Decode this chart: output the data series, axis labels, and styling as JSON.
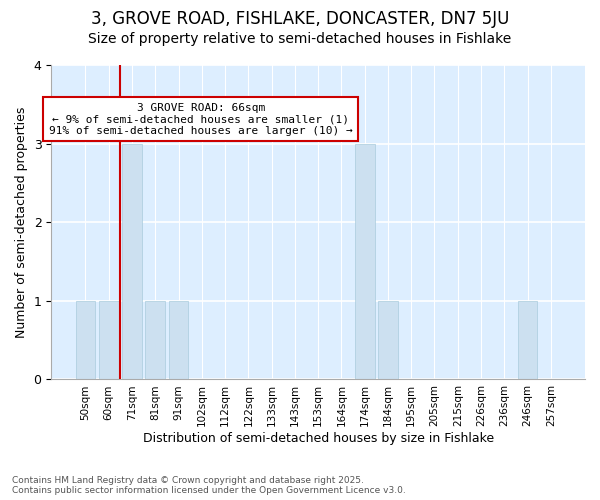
{
  "title": "3, GROVE ROAD, FISHLAKE, DONCASTER, DN7 5JU",
  "subtitle": "Size of property relative to semi-detached houses in Fishlake",
  "xlabel": "Distribution of semi-detached houses by size in Fishlake",
  "ylabel": "Number of semi-detached properties",
  "footer_line1": "Contains HM Land Registry data © Crown copyright and database right 2025.",
  "footer_line2": "Contains public sector information licensed under the Open Government Licence v3.0.",
  "categories": [
    "50sqm",
    "60sqm",
    "71sqm",
    "81sqm",
    "91sqm",
    "102sqm",
    "112sqm",
    "122sqm",
    "133sqm",
    "143sqm",
    "153sqm",
    "164sqm",
    "174sqm",
    "184sqm",
    "195sqm",
    "205sqm",
    "215sqm",
    "226sqm",
    "236sqm",
    "246sqm",
    "257sqm"
  ],
  "values": [
    1,
    1,
    3,
    1,
    1,
    0,
    0,
    0,
    0,
    0,
    0,
    0,
    3,
    1,
    0,
    0,
    0,
    0,
    0,
    1,
    0
  ],
  "bar_color": "#cce0f0",
  "bar_edge_color": "#aaccdd",
  "property_line_x": 2.0,
  "property_line_color": "#cc0000",
  "annotation_text": "3 GROVE ROAD: 66sqm\n← 9% of semi-detached houses are smaller (1)\n91% of semi-detached houses are larger (10) →",
  "annotation_box_color": "#ffffff",
  "annotation_box_edge": "#cc0000",
  "ylim": [
    0,
    4
  ],
  "yticks": [
    0,
    1,
    2,
    3,
    4
  ],
  "fig_bg_color": "#ffffff",
  "axes_bg_color": "#ddeeff",
  "title_fontsize": 12,
  "subtitle_fontsize": 10
}
